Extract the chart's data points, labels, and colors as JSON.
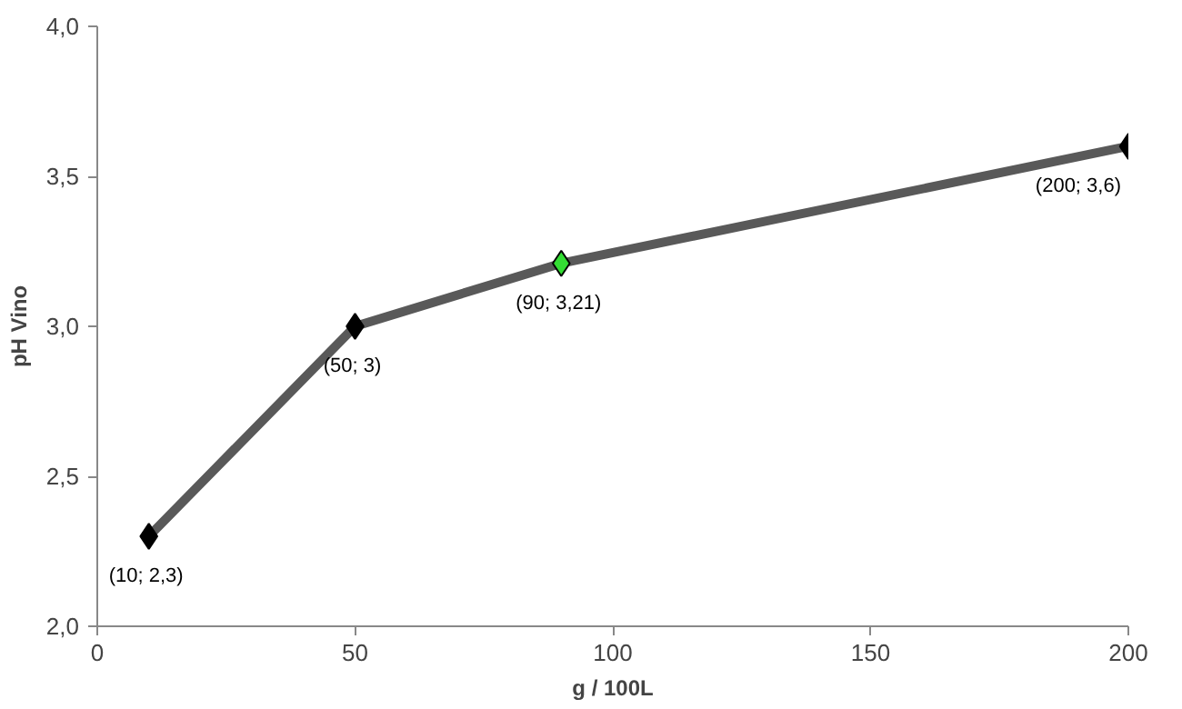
{
  "chart_data": {
    "type": "line",
    "xlabel": "g / 100L",
    "ylabel": "pH Vino",
    "x": [
      10,
      50,
      90,
      200
    ],
    "series": [
      {
        "color": "#595959",
        "values": [
          2.3,
          3,
          3.21,
          3.6
        ],
        "colors": [
          "#000000",
          "#000000",
          "#33dd33",
          "#000000"
        ],
        "value_labels": [
          "(10;  2,3)",
          "(50;  3)",
          "(90;  3,21)",
          "(200; 3,6)"
        ]
      }
    ],
    "xlim": [
      0,
      200
    ],
    "xticks": [
      0,
      50,
      100,
      150,
      200
    ],
    "ylim": [
      2.0,
      4.0
    ],
    "yticks": [
      {
        "value": 2.0,
        "label": "2,0"
      },
      {
        "value": 2.5,
        "label": "2,5"
      },
      {
        "value": 3.0,
        "label": "3,0"
      },
      {
        "value": 3.5,
        "label": "3,5"
      },
      {
        "value": 4.0,
        "label": "4,0"
      }
    ],
    "marker": "diamond",
    "grid": false
  }
}
